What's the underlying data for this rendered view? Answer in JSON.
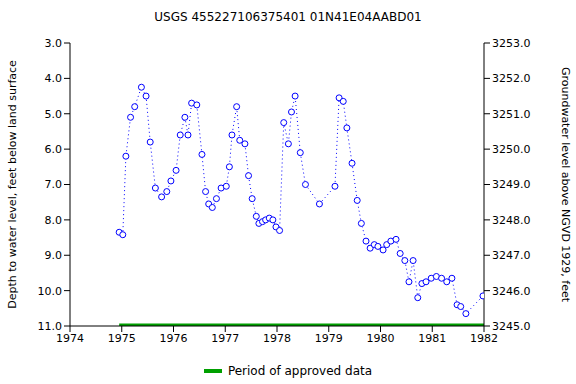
{
  "chart_data": {
    "type": "line",
    "title": "USGS 455227106375401 01N41E04AABD01",
    "x_label": "",
    "y_label": "Depth to water level, feet below land surface",
    "y2_label": "Groundwater level above NGVD 1929, feet",
    "xlim": [
      1974,
      1982
    ],
    "xticks": [
      1974,
      1975,
      1976,
      1977,
      1978,
      1979,
      1980,
      1981,
      1982
    ],
    "ylim": [
      11,
      3
    ],
    "yticks": [
      {
        "value": 3,
        "label": "3.0"
      },
      {
        "value": 4,
        "label": "4.0"
      },
      {
        "value": 5,
        "label": "5.0"
      },
      {
        "value": 6,
        "label": "6.0"
      },
      {
        "value": 7,
        "label": "7.0"
      },
      {
        "value": 8,
        "label": "8.0"
      },
      {
        "value": 9,
        "label": "9.0"
      },
      {
        "value": 10,
        "label": "10.0"
      },
      {
        "value": 11,
        "label": "11.0"
      }
    ],
    "y2lim": [
      3245,
      3253
    ],
    "y2ticks": [
      {
        "value": 3245,
        "label": "3245.0"
      },
      {
        "value": 3246,
        "label": "3246.0"
      },
      {
        "value": 3247,
        "label": "3247.0"
      },
      {
        "value": 3248,
        "label": "3248.0"
      },
      {
        "value": 3249,
        "label": "3249.0"
      },
      {
        "value": 3250,
        "label": "3250.0"
      },
      {
        "value": 3251,
        "label": "3251.0"
      },
      {
        "value": 3252,
        "label": "3252.0"
      },
      {
        "value": 3253,
        "label": "3253.0"
      }
    ],
    "grid": false,
    "series": [
      {
        "name": "Depth to water level",
        "color": "#0000ff",
        "marker": "circle",
        "line_style": "dotted",
        "x": [
          1974.95,
          1975.02,
          1975.08,
          1975.17,
          1975.25,
          1975.38,
          1975.47,
          1975.55,
          1975.65,
          1975.77,
          1975.87,
          1975.95,
          1976.05,
          1976.13,
          1976.22,
          1976.28,
          1976.35,
          1976.45,
          1976.55,
          1976.62,
          1976.68,
          1976.75,
          1976.83,
          1976.92,
          1977.02,
          1977.08,
          1977.13,
          1977.22,
          1977.28,
          1977.38,
          1977.45,
          1977.52,
          1977.6,
          1977.65,
          1977.72,
          1977.78,
          1977.85,
          1977.92,
          1977.98,
          1978.05,
          1978.13,
          1978.22,
          1978.28,
          1978.35,
          1978.45,
          1978.55,
          1978.82,
          1979.12,
          1979.2,
          1979.28,
          1979.35,
          1979.45,
          1979.55,
          1979.63,
          1979.72,
          1979.8,
          1979.88,
          1979.95,
          1980.05,
          1980.12,
          1980.2,
          1980.3,
          1980.38,
          1980.47,
          1980.55,
          1980.63,
          1980.72,
          1980.8,
          1980.88,
          1980.98,
          1981.08,
          1981.18,
          1981.28,
          1981.38,
          1981.48,
          1981.55,
          1981.65,
          1981.98
        ],
        "values": [
          8.35,
          8.42,
          6.2,
          5.1,
          4.8,
          4.25,
          4.5,
          5.8,
          7.1,
          7.35,
          7.2,
          6.9,
          6.6,
          5.6,
          5.1,
          5.6,
          4.7,
          4.75,
          6.15,
          7.2,
          7.55,
          7.65,
          7.4,
          7.1,
          7.05,
          6.5,
          5.6,
          4.8,
          5.75,
          5.85,
          6.75,
          7.4,
          7.9,
          8.1,
          8.05,
          8.0,
          7.95,
          8.0,
          8.2,
          8.3,
          5.25,
          5.85,
          4.95,
          4.5,
          6.1,
          7.0,
          7.55,
          7.05,
          4.55,
          4.65,
          5.4,
          6.4,
          7.45,
          8.1,
          8.6,
          8.8,
          8.7,
          8.75,
          8.85,
          8.7,
          8.6,
          8.55,
          8.95,
          9.15,
          9.75,
          9.15,
          10.2,
          9.8,
          9.75,
          9.65,
          9.6,
          9.65,
          9.75,
          9.65,
          10.4,
          10.45,
          10.65,
          10.15
        ]
      }
    ],
    "approved_period": {
      "name": "Period of approved data",
      "color": "#00a000",
      "line_style": "solid",
      "x": [
        1974.95,
        1982
      ]
    }
  }
}
